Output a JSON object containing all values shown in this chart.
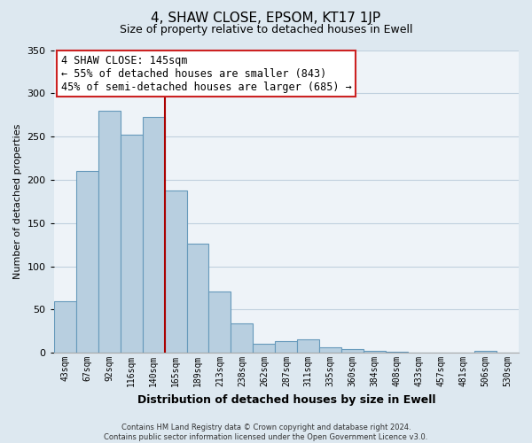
{
  "title": "4, SHAW CLOSE, EPSOM, KT17 1JP",
  "subtitle": "Size of property relative to detached houses in Ewell",
  "xlabel": "Distribution of detached houses by size in Ewell",
  "ylabel": "Number of detached properties",
  "bar_labels": [
    "43sqm",
    "67sqm",
    "92sqm",
    "116sqm",
    "140sqm",
    "165sqm",
    "189sqm",
    "213sqm",
    "238sqm",
    "262sqm",
    "287sqm",
    "311sqm",
    "335sqm",
    "360sqm",
    "384sqm",
    "408sqm",
    "433sqm",
    "457sqm",
    "481sqm",
    "506sqm",
    "530sqm"
  ],
  "bar_values": [
    60,
    210,
    280,
    252,
    273,
    188,
    126,
    71,
    34,
    10,
    13,
    15,
    6,
    4,
    2,
    1,
    0,
    0,
    0,
    2,
    0
  ],
  "bar_color": "#b8cfe0",
  "bar_edge_color": "#6699bb",
  "highlight_line_color": "#aa0000",
  "annotation_line1": "4 SHAW CLOSE: 145sqm",
  "annotation_line2": "← 55% of detached houses are smaller (843)",
  "annotation_line3": "45% of semi-detached houses are larger (685) →",
  "annotation_box_color": "white",
  "annotation_box_edge_color": "#cc2222",
  "ylim": [
    0,
    350
  ],
  "yticks": [
    0,
    50,
    100,
    150,
    200,
    250,
    300,
    350
  ],
  "footnote": "Contains HM Land Registry data © Crown copyright and database right 2024.\nContains public sector information licensed under the Open Government Licence v3.0.",
  "background_color": "#dde8f0",
  "plot_background_color": "#eef3f8",
  "grid_color": "#c0d0de",
  "title_fontsize": 11,
  "subtitle_fontsize": 9
}
